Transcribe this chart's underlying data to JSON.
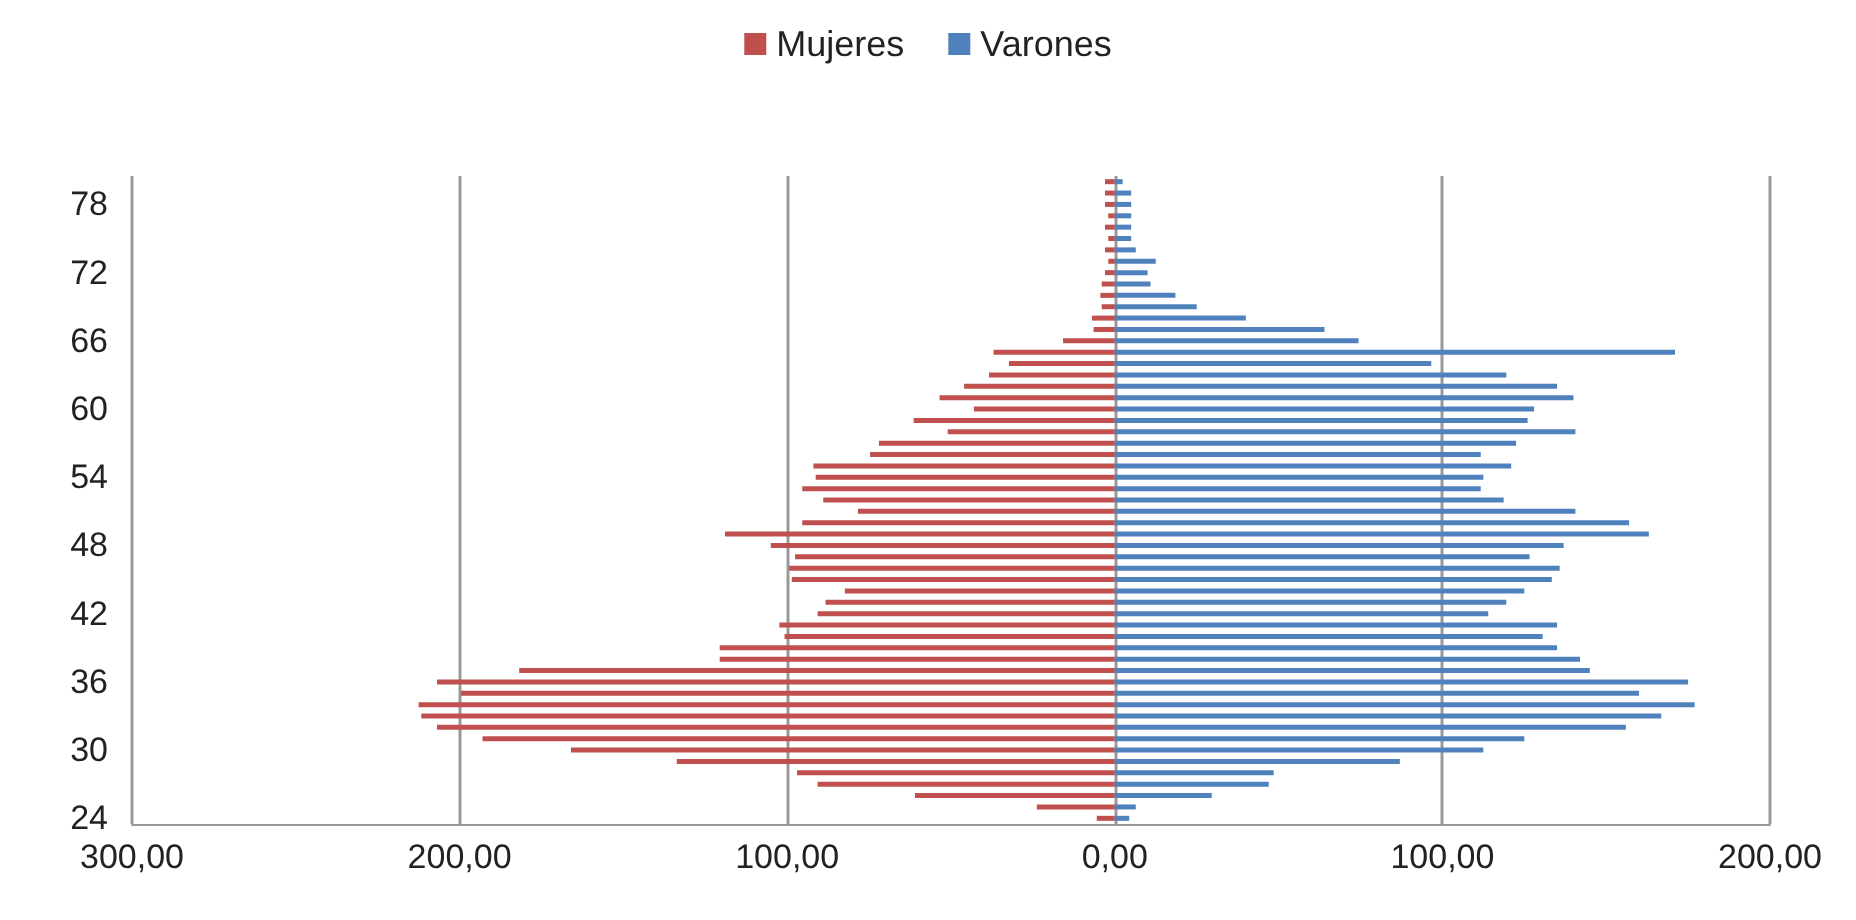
{
  "chart_data": {
    "type": "bar",
    "orientation": "horizontal",
    "categories": [
      null,
      null,
      "78",
      null,
      null,
      null,
      null,
      null,
      "72",
      null,
      null,
      null,
      null,
      null,
      "66",
      null,
      null,
      null,
      null,
      null,
      "60",
      null,
      null,
      null,
      null,
      null,
      "54",
      null,
      null,
      null,
      null,
      null,
      "48",
      null,
      null,
      null,
      null,
      null,
      "42",
      null,
      null,
      null,
      null,
      null,
      "36",
      null,
      null,
      null,
      null,
      null,
      "30",
      null,
      null,
      null,
      null,
      null,
      "24"
    ],
    "series": [
      {
        "name": "Mujeres",
        "color": "#c0504d",
        "values": [
          -3,
          -3,
          -3,
          -2,
          -3,
          -2,
          -3,
          -2,
          -3,
          -4,
          -4.4,
          -4,
          -7,
          -6.5,
          -15.8,
          -37,
          -32.3,
          -38.4,
          -46,
          -53.5,
          -43,
          -61.4,
          -51,
          -72,
          -74.7,
          -92,
          -91.3,
          -95.4,
          -89,
          -78.4,
          -95.4,
          -119,
          -105,
          -97.6,
          -99.4,
          -98.6,
          -82.4,
          -88.3,
          -90.7,
          -102.4,
          -100.8,
          -120.6,
          -120.6,
          -181.8,
          -206.9,
          -199.6,
          -212.5,
          -211.7,
          -206.9,
          -193,
          -166,
          -133.7,
          -97,
          -90.7,
          -61,
          -23.8,
          -5.5
        ]
      },
      {
        "name": "Varones",
        "color": "#4f81bd",
        "values": [
          2.4,
          5,
          5,
          5,
          5,
          5,
          6.4,
          12.5,
          10,
          10.9,
          18.5,
          25,
          40,
          64,
          74.4,
          171,
          96.6,
          119.5,
          135,
          140,
          128,
          126,
          140.6,
          122.5,
          111.7,
          121,
          112.5,
          111.7,
          118.7,
          140.6,
          157,
          163,
          137,
          126.6,
          135.8,
          133.4,
          125,
          119.5,
          114,
          135,
          130.6,
          135,
          142,
          145,
          175,
          160,
          177,
          166.8,
          156,
          125,
          112.5,
          87,
          48.5,
          47,
          29.6,
          6.4,
          4.4
        ]
      }
    ],
    "xlim": [
      -300,
      200
    ],
    "xticks": [
      {
        "value": -300,
        "label": "300,00"
      },
      {
        "value": -200,
        "label": "200,00"
      },
      {
        "value": -100,
        "label": "100,00"
      },
      {
        "value": 0,
        "label": "0,00"
      },
      {
        "value": 100,
        "label": "100,00"
      },
      {
        "value": 200,
        "label": "200,00"
      }
    ],
    "stacked": true,
    "grid": "x",
    "legend": "top"
  }
}
